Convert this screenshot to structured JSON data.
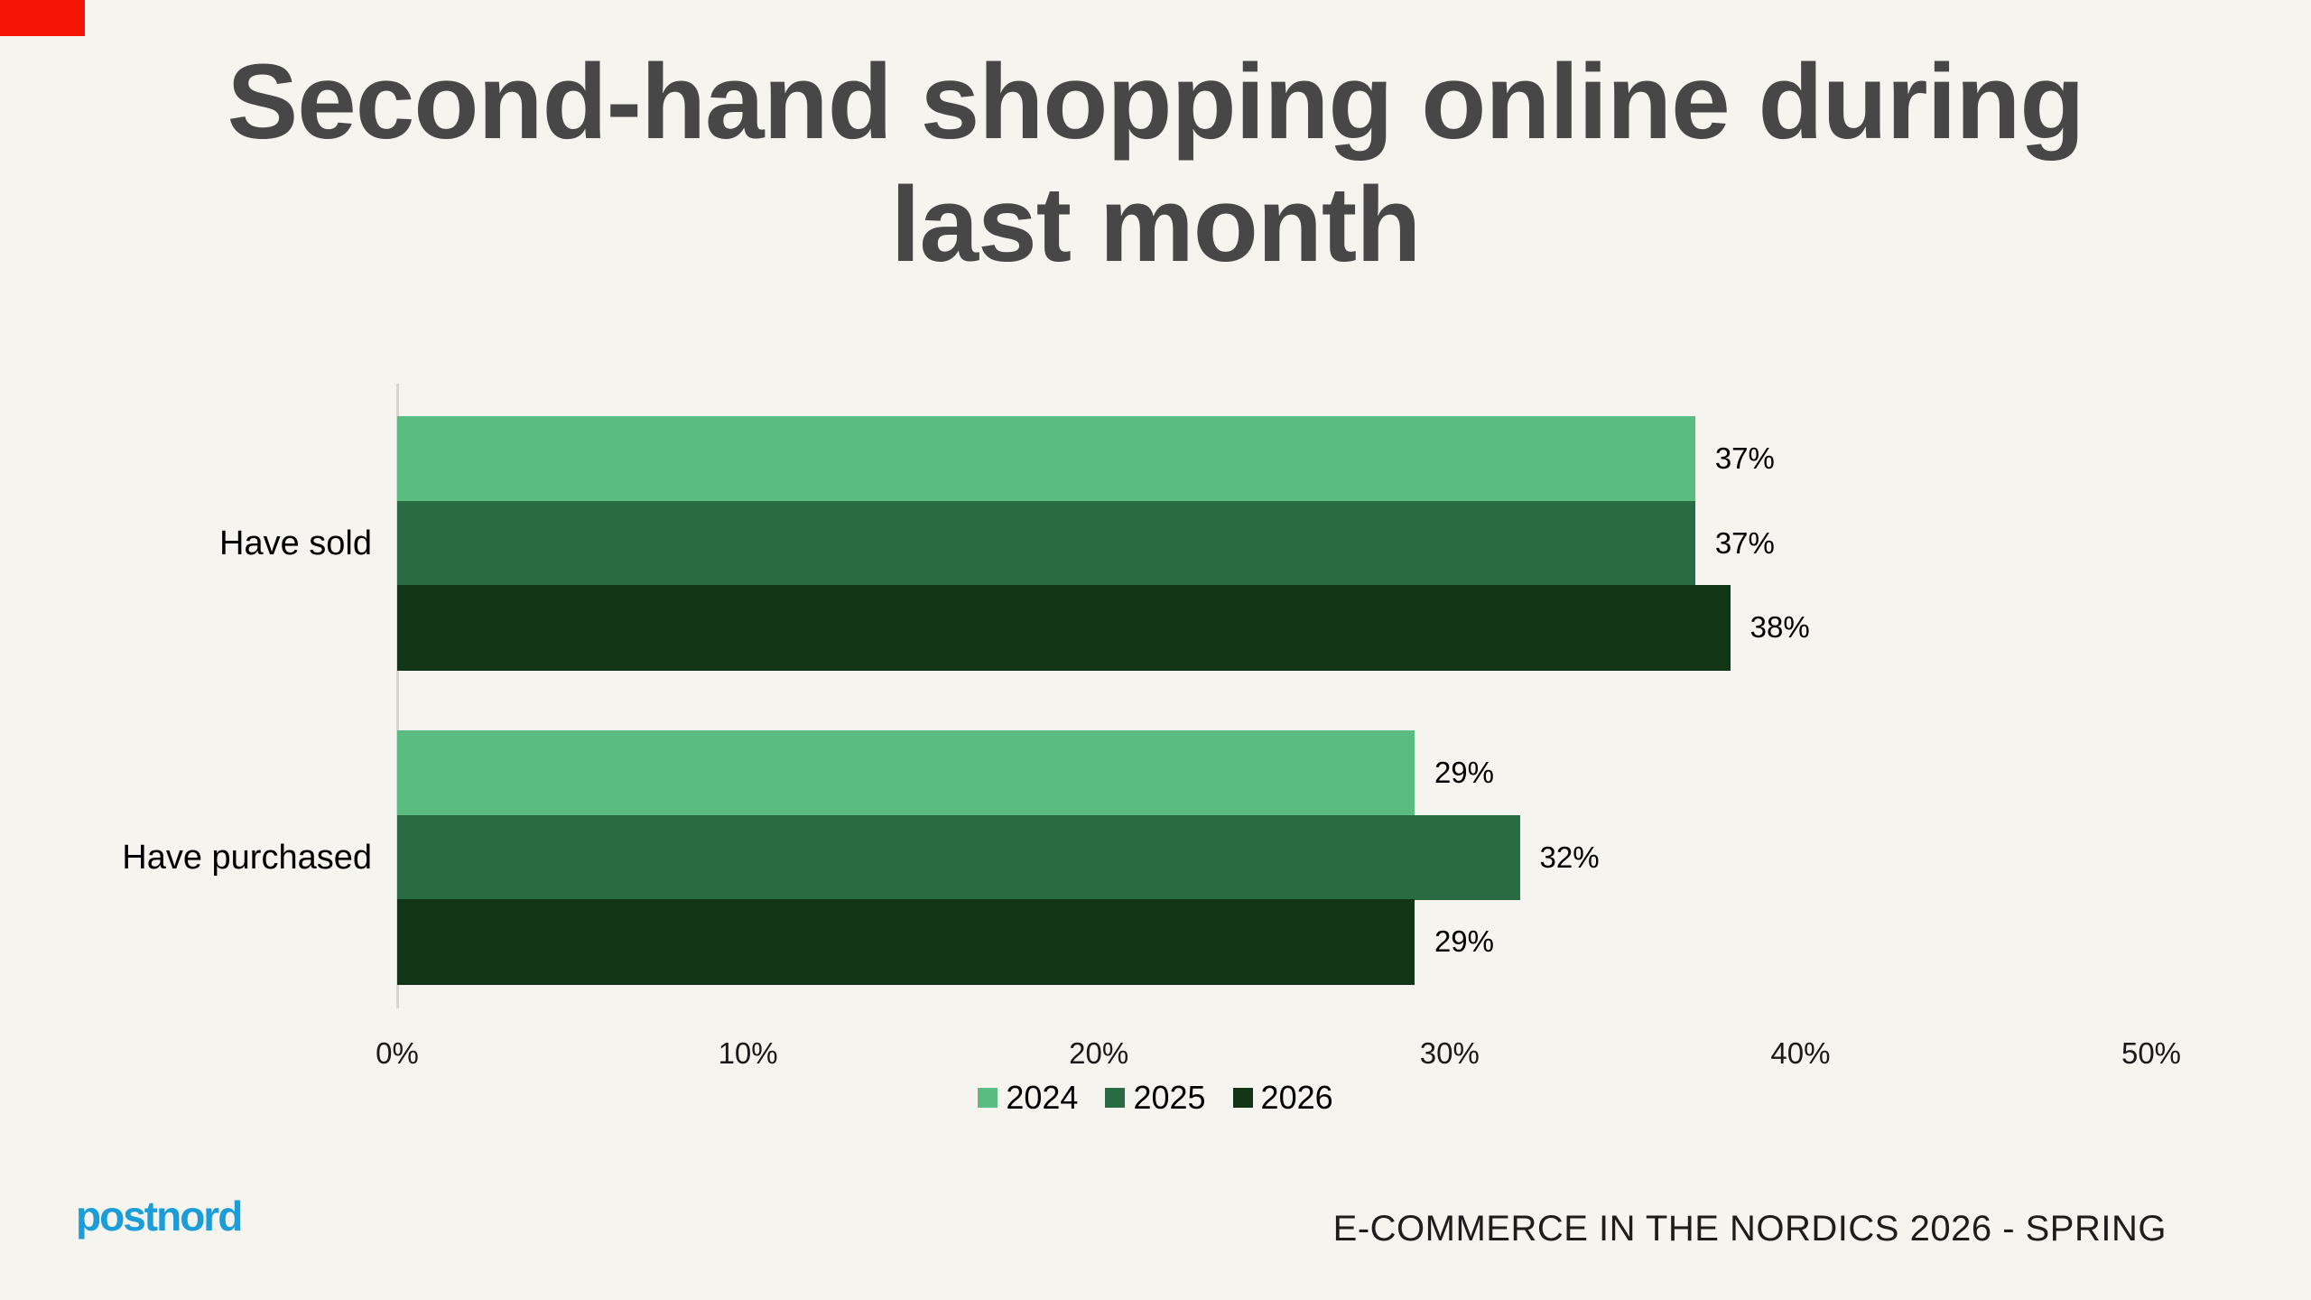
{
  "slide": {
    "background_color": "#f6f4ef",
    "corner_marker_color": "#f51505",
    "title": "Second-hand shopping online during last month",
    "title_lines": [
      "Second-hand shopping online during",
      "last month"
    ],
    "title_color": "#474747",
    "footer": "E-COMMERCE IN THE NORDICS 2026 - SPRING",
    "logo_text": "postnord",
    "logo_color": "#1a9dd9"
  },
  "chart_data": {
    "type": "bar",
    "orientation": "horizontal",
    "title": "Second-hand shopping online during last month",
    "categories": [
      "Have sold",
      "Have purchased"
    ],
    "series": [
      {
        "name": "2024",
        "color": "#5abc80",
        "values": [
          37,
          29
        ]
      },
      {
        "name": "2025",
        "color": "#296b42",
        "values": [
          37,
          32
        ]
      },
      {
        "name": "2026",
        "color": "#123517",
        "values": [
          38,
          29
        ]
      }
    ],
    "value_labels": [
      [
        "37%",
        "29%"
      ],
      [
        "37%",
        "32%"
      ],
      [
        "38%",
        "29%"
      ]
    ],
    "value_suffix": "%",
    "xlabel": "",
    "ylabel": "",
    "xlim": [
      0,
      50
    ],
    "x_ticks": [
      "0%",
      "10%",
      "20%",
      "30%",
      "40%",
      "50%"
    ],
    "grid": false,
    "legend_position": "bottom-center"
  }
}
